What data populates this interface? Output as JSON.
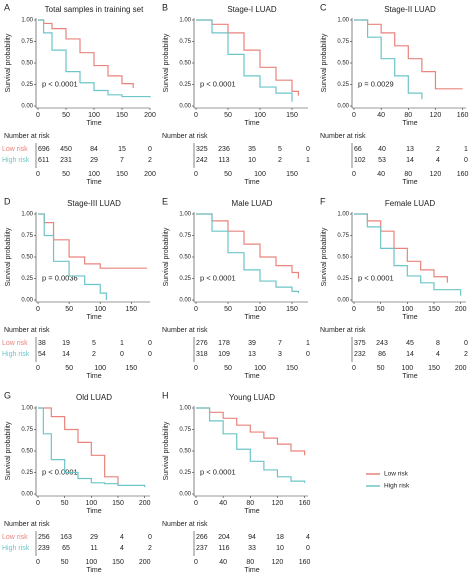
{
  "chart_data": [
    {
      "type": "line",
      "step": true,
      "label": "A",
      "title": "Total samples in training set",
      "ylabel": "Survival probability",
      "xlabel": "Time",
      "annotation": "p < 0.0001",
      "xlim": [
        0,
        200
      ],
      "xticks": [
        0,
        50,
        100,
        150,
        200
      ],
      "ylim": [
        0,
        1
      ],
      "yticks": [
        {
          "value": 0,
          "label": "0.00"
        },
        {
          "value": 0.25,
          "label": "0.25"
        },
        {
          "value": 0.5,
          "label": "0.50"
        },
        {
          "value": 0.75,
          "label": "0.75"
        },
        {
          "value": 1,
          "label": "1.00"
        }
      ],
      "series": [
        {
          "color": "#e9837c",
          "x": [
            0,
            10,
            25,
            50,
            75,
            100,
            125,
            150,
            170
          ],
          "values": [
            1,
            0.96,
            0.9,
            0.78,
            0.62,
            0.47,
            0.35,
            0.26,
            0.21
          ]
        },
        {
          "color": "#6cc5c8",
          "x": [
            0,
            10,
            25,
            50,
            75,
            100,
            125,
            150,
            200
          ],
          "values": [
            1,
            0.85,
            0.65,
            0.4,
            0.27,
            0.18,
            0.13,
            0.11,
            0.1
          ]
        }
      ],
      "risk_table": {
        "title": "Number at risk",
        "rows": [
          {
            "name": "Low risk",
            "values": [
              696,
              450,
              84,
              15,
              0
            ]
          },
          {
            "name": "High risk",
            "values": [
              611,
              231,
              29,
              7,
              2
            ]
          }
        ]
      }
    },
    {
      "type": "line",
      "step": true,
      "label": "B",
      "title": "Stage-I LUAD",
      "ylabel": "Survival probability",
      "xlabel": "Time",
      "annotation": "p < 0.0001",
      "xlim": [
        0,
        175
      ],
      "xticks": [
        0,
        50,
        100,
        150
      ],
      "ylim": [
        0,
        1
      ],
      "yticks": [
        {
          "value": 0,
          "label": "0.00"
        },
        {
          "value": 0.25,
          "label": "0.25"
        },
        {
          "value": 0.5,
          "label": "0.50"
        },
        {
          "value": 0.75,
          "label": "0.75"
        },
        {
          "value": 1,
          "label": "1.00"
        }
      ],
      "series": [
        {
          "color": "#e9837c",
          "x": [
            0,
            25,
            50,
            75,
            100,
            125,
            150,
            160
          ],
          "values": [
            1,
            0.95,
            0.85,
            0.65,
            0.45,
            0.3,
            0.17,
            0.12
          ]
        },
        {
          "color": "#6cc5c8",
          "x": [
            0,
            25,
            50,
            75,
            100,
            125,
            150
          ],
          "values": [
            1,
            0.85,
            0.6,
            0.35,
            0.22,
            0.15,
            0.05
          ]
        }
      ],
      "risk_table": {
        "title": "Number at risk",
        "rows": [
          {
            "values": [
              325,
              236,
              35,
              5,
              0
            ]
          },
          {
            "values": [
              242,
              113,
              10,
              2,
              1
            ]
          }
        ]
      }
    },
    {
      "type": "line",
      "step": true,
      "label": "C",
      "title": "Stage-II LUAD",
      "ylabel": "Survival probability",
      "xlabel": "Time",
      "annotation": "p = 0.0029",
      "xlim": [
        0,
        165
      ],
      "xticks": [
        0,
        40,
        80,
        120,
        160
      ],
      "ylim": [
        0,
        1
      ],
      "yticks": [
        {
          "value": 0,
          "label": "0.00"
        },
        {
          "value": 0.25,
          "label": "0.25"
        },
        {
          "value": 0.5,
          "label": "0.50"
        },
        {
          "value": 0.75,
          "label": "0.75"
        },
        {
          "value": 1,
          "label": "1.00"
        }
      ],
      "series": [
        {
          "color": "#e9837c",
          "x": [
            0,
            20,
            40,
            60,
            80,
            100,
            120,
            160
          ],
          "values": [
            1,
            0.95,
            0.85,
            0.7,
            0.55,
            0.4,
            0.2,
            0.2
          ]
        },
        {
          "color": "#6cc5c8",
          "x": [
            0,
            20,
            40,
            60,
            80,
            100
          ],
          "values": [
            1,
            0.8,
            0.55,
            0.35,
            0.15,
            0.08
          ]
        }
      ],
      "risk_table": {
        "title": "Number at risk",
        "rows": [
          {
            "values": [
              66,
              40,
              13,
              2,
              1
            ]
          },
          {
            "values": [
              102,
              53,
              14,
              4,
              0
            ]
          }
        ]
      }
    },
    {
      "type": "line",
      "step": true,
      "label": "D",
      "title": "Stage-III LUAD",
      "ylabel": "Survival probability",
      "xlabel": "Time",
      "annotation": "p = 0.0036",
      "xlim": [
        0,
        180
      ],
      "xticks": [
        0,
        50,
        100,
        150
      ],
      "ylim": [
        0,
        1
      ],
      "yticks": [
        {
          "value": 0,
          "label": "0.00"
        },
        {
          "value": 0.25,
          "label": "0.25"
        },
        {
          "value": 0.5,
          "label": "0.50"
        },
        {
          "value": 0.75,
          "label": "0.75"
        },
        {
          "value": 1,
          "label": "1.00"
        }
      ],
      "series": [
        {
          "color": "#e9837c",
          "x": [
            0,
            10,
            25,
            50,
            75,
            100,
            175
          ],
          "values": [
            1,
            0.9,
            0.7,
            0.5,
            0.42,
            0.37,
            0.37
          ]
        },
        {
          "color": "#6cc5c8",
          "x": [
            0,
            10,
            25,
            50,
            75,
            100,
            110
          ],
          "values": [
            1,
            0.75,
            0.45,
            0.28,
            0.18,
            0.08,
            0
          ]
        }
      ],
      "risk_table": {
        "title": "Number at risk",
        "rows": [
          {
            "name": "Low risk",
            "values": [
              38,
              19,
              5,
              1,
              0
            ]
          },
          {
            "name": "High risk",
            "values": [
              54,
              14,
              2,
              0,
              0
            ]
          }
        ]
      }
    },
    {
      "type": "line",
      "step": true,
      "label": "E",
      "title": "Male LUAD",
      "ylabel": "Survival probability",
      "xlabel": "Time",
      "annotation": "p < 0.0001",
      "xlim": [
        0,
        175
      ],
      "xticks": [
        0,
        50,
        100,
        150
      ],
      "ylim": [
        0,
        1
      ],
      "yticks": [
        {
          "value": 0,
          "label": "0.00"
        },
        {
          "value": 0.25,
          "label": "0.25"
        },
        {
          "value": 0.5,
          "label": "0.50"
        },
        {
          "value": 0.75,
          "label": "0.75"
        },
        {
          "value": 1,
          "label": "1.00"
        }
      ],
      "series": [
        {
          "color": "#e9837c",
          "x": [
            0,
            25,
            50,
            75,
            100,
            125,
            150,
            160
          ],
          "values": [
            1,
            0.92,
            0.8,
            0.65,
            0.5,
            0.4,
            0.32,
            0.25
          ]
        },
        {
          "color": "#6cc5c8",
          "x": [
            0,
            25,
            50,
            75,
            100,
            125,
            150,
            160
          ],
          "values": [
            1,
            0.8,
            0.55,
            0.35,
            0.22,
            0.15,
            0.1,
            0.08
          ]
        }
      ],
      "risk_table": {
        "title": "Number at risk",
        "rows": [
          {
            "values": [
              276,
              178,
              39,
              7,
              1
            ]
          },
          {
            "values": [
              318,
              109,
              13,
              3,
              0
            ]
          }
        ]
      }
    },
    {
      "type": "line",
      "step": true,
      "label": "F",
      "title": "Female LUAD",
      "ylabel": "Survival probability",
      "xlabel": "Time",
      "annotation": "p < 0.0001",
      "xlim": [
        0,
        210
      ],
      "xticks": [
        0,
        50,
        100,
        150,
        200
      ],
      "ylim": [
        0,
        1
      ],
      "yticks": [
        {
          "value": 0,
          "label": "0.00"
        },
        {
          "value": 0.25,
          "label": "0.25"
        },
        {
          "value": 0.5,
          "label": "0.50"
        },
        {
          "value": 0.75,
          "label": "0.75"
        },
        {
          "value": 1,
          "label": "1.00"
        }
      ],
      "series": [
        {
          "color": "#e9837c",
          "x": [
            0,
            25,
            50,
            75,
            100,
            125,
            150,
            175
          ],
          "values": [
            1,
            0.92,
            0.8,
            0.6,
            0.45,
            0.35,
            0.27,
            0.2
          ]
        },
        {
          "color": "#6cc5c8",
          "x": [
            0,
            25,
            50,
            75,
            100,
            125,
            150,
            200
          ],
          "values": [
            1,
            0.85,
            0.6,
            0.4,
            0.28,
            0.2,
            0.12,
            0.05
          ]
        }
      ],
      "risk_table": {
        "title": "Number at risk",
        "rows": [
          {
            "values": [
              375,
              243,
              45,
              8,
              0
            ]
          },
          {
            "values": [
              232,
              86,
              14,
              4,
              2
            ]
          }
        ]
      }
    },
    {
      "type": "line",
      "step": true,
      "label": "G",
      "title": "Old LUAD",
      "ylabel": "Survival probability",
      "xlabel": "Time",
      "annotation": "p < 0.0001",
      "xlim": [
        0,
        210
      ],
      "xticks": [
        0,
        50,
        100,
        150,
        200
      ],
      "ylim": [
        0,
        1
      ],
      "yticks": [
        {
          "value": 0,
          "label": "0.00"
        },
        {
          "value": 0.25,
          "label": "0.25"
        },
        {
          "value": 0.5,
          "label": "0.50"
        },
        {
          "value": 0.75,
          "label": "0.75"
        },
        {
          "value": 1,
          "label": "1.00"
        }
      ],
      "series": [
        {
          "color": "#e9837c",
          "x": [
            0,
            25,
            50,
            75,
            100,
            125,
            150
          ],
          "values": [
            1,
            0.9,
            0.75,
            0.6,
            0.45,
            0.2,
            0.1
          ]
        },
        {
          "color": "#6cc5c8",
          "x": [
            0,
            10,
            25,
            50,
            75,
            100,
            125,
            150,
            200
          ],
          "values": [
            1,
            0.7,
            0.4,
            0.25,
            0.18,
            0.13,
            0.12,
            0.1,
            0.08
          ]
        }
      ],
      "risk_table": {
        "title": "Number at risk",
        "rows": [
          {
            "name": "Low risk",
            "values": [
              256,
              163,
              29,
              4,
              0
            ]
          },
          {
            "name": "High risk",
            "values": [
              239,
              65,
              11,
              4,
              2
            ]
          }
        ]
      }
    },
    {
      "type": "line",
      "step": true,
      "label": "H",
      "title": "Young LUAD",
      "ylabel": "Survival probability",
      "xlabel": "Time",
      "annotation": "p < 0.0001",
      "xlim": [
        0,
        165
      ],
      "xticks": [
        0,
        40,
        80,
        120,
        160
      ],
      "ylim": [
        0,
        1
      ],
      "yticks": [
        {
          "value": 0,
          "label": "0.00"
        },
        {
          "value": 0.25,
          "label": "0.25"
        },
        {
          "value": 0.5,
          "label": "0.50"
        },
        {
          "value": 0.75,
          "label": "0.75"
        },
        {
          "value": 1,
          "label": "1.00"
        }
      ],
      "series": [
        {
          "color": "#e9837c",
          "x": [
            0,
            20,
            40,
            60,
            80,
            100,
            120,
            140,
            160
          ],
          "values": [
            1,
            0.95,
            0.88,
            0.8,
            0.72,
            0.65,
            0.58,
            0.5,
            0.45
          ]
        },
        {
          "color": "#6cc5c8",
          "x": [
            0,
            20,
            40,
            60,
            80,
            100,
            120,
            140,
            160
          ],
          "values": [
            1,
            0.85,
            0.7,
            0.52,
            0.38,
            0.28,
            0.2,
            0.15,
            0.13
          ]
        }
      ],
      "risk_table": {
        "title": "Number at risk",
        "rows": [
          {
            "values": [
              266,
              204,
              94,
              18,
              4
            ]
          },
          {
            "values": [
              237,
              116,
              33,
              10,
              0
            ]
          }
        ]
      }
    }
  ],
  "legend": [
    {
      "name": "Low risk",
      "color": "#e9837c"
    },
    {
      "name": "High risk",
      "color": "#6cc5c8"
    }
  ]
}
